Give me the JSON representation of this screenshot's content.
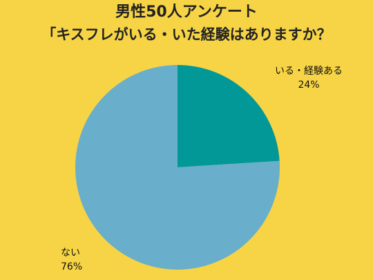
{
  "title_line1": "男性50人アンケート",
  "title_line2": "「キスフレがいる・いた経験はありますか？",
  "chart_data": {
    "type": "pie",
    "title": "男性50人アンケート 「キスフレがいる・いた経験はありますか？",
    "slices": [
      {
        "label": "いる・経験ある",
        "value": 24,
        "display": "24%",
        "color": "#029898"
      },
      {
        "label": "ない",
        "value": 76,
        "display": "76%",
        "color": "#69aecb"
      }
    ],
    "start_angle_deg": 0,
    "direction": "clockwise",
    "legend": "none"
  },
  "colors": {
    "background": "#f7d445"
  }
}
